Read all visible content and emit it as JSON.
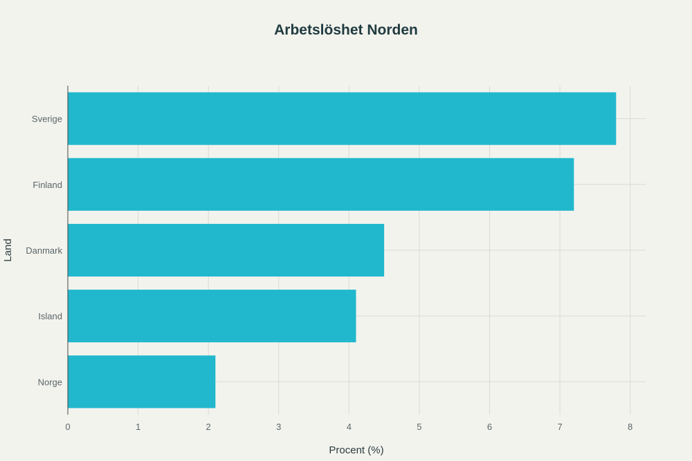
{
  "chart_data": {
    "type": "bar",
    "orientation": "horizontal",
    "title": "Arbetslöshet Norden",
    "xlabel": "Procent (%)",
    "ylabel": "Land",
    "categories": [
      "Sverige",
      "Finland",
      "Danmark",
      "Island",
      "Norge"
    ],
    "values": [
      7.8,
      7.2,
      4.5,
      4.1,
      2.1
    ],
    "xlim": [
      0,
      8.22
    ],
    "xticks": [
      "0",
      "1",
      "2",
      "3",
      "4",
      "5",
      "6",
      "7",
      "8"
    ],
    "grid": true,
    "colors": {
      "bar": "#21b8cd",
      "background": "#f3f3ee",
      "grid": "#d9dbd3"
    }
  }
}
